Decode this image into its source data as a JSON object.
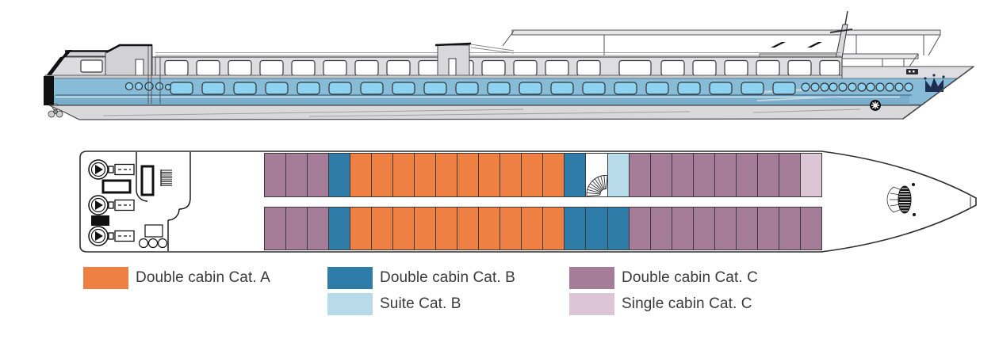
{
  "colors": {
    "cat_a": "#EE8043",
    "cat_b": "#2E7CA7",
    "suite_b": "#B7DBE9",
    "cat_c": "#A67D98",
    "single_c": "#DCC5D5",
    "hull_band": "#87BBD8",
    "window_blue": "#8ED2F1"
  },
  "legend": {
    "columns": [
      {
        "items": [
          {
            "key": "cat_a",
            "label": "Double cabin Cat. A"
          }
        ]
      },
      {
        "items": [
          {
            "key": "cat_b",
            "label": "Double cabin Cat. B"
          },
          {
            "key": "suite_b",
            "label": "Suite Cat. B"
          }
        ]
      },
      {
        "items": [
          {
            "key": "cat_c",
            "label": "Double cabin Cat. C"
          },
          {
            "key": "single_c",
            "label": "Single cabin Cat. C"
          }
        ]
      }
    ]
  },
  "deck": {
    "rows": [
      {
        "name": "upper-cabin-row",
        "segments": [
          {
            "key": "cat_c",
            "count": 3
          },
          {
            "key": "cat_b",
            "count": 1
          },
          {
            "key": "cat_a",
            "count": 10
          },
          {
            "key": "cat_b",
            "count": 1
          },
          {
            "key": "stairs",
            "count": 1
          },
          {
            "key": "suite_b",
            "count": 1
          },
          {
            "key": "cat_c",
            "count": 8
          },
          {
            "key": "single_c",
            "count": 1
          }
        ]
      },
      {
        "name": "lower-cabin-row",
        "segments": [
          {
            "key": "cat_c",
            "count": 3
          },
          {
            "key": "cat_b",
            "count": 1
          },
          {
            "key": "cat_a",
            "count": 10
          },
          {
            "key": "cat_b",
            "count": 3
          },
          {
            "key": "cat_c",
            "count": 9
          }
        ]
      }
    ]
  },
  "icons": {
    "mid_staircase": "spiral-staircase",
    "bow_staircase": "spiral-staircase",
    "propeller": "propeller",
    "bow_thruster": "thruster-asterisk",
    "crown": "crown-logo"
  }
}
